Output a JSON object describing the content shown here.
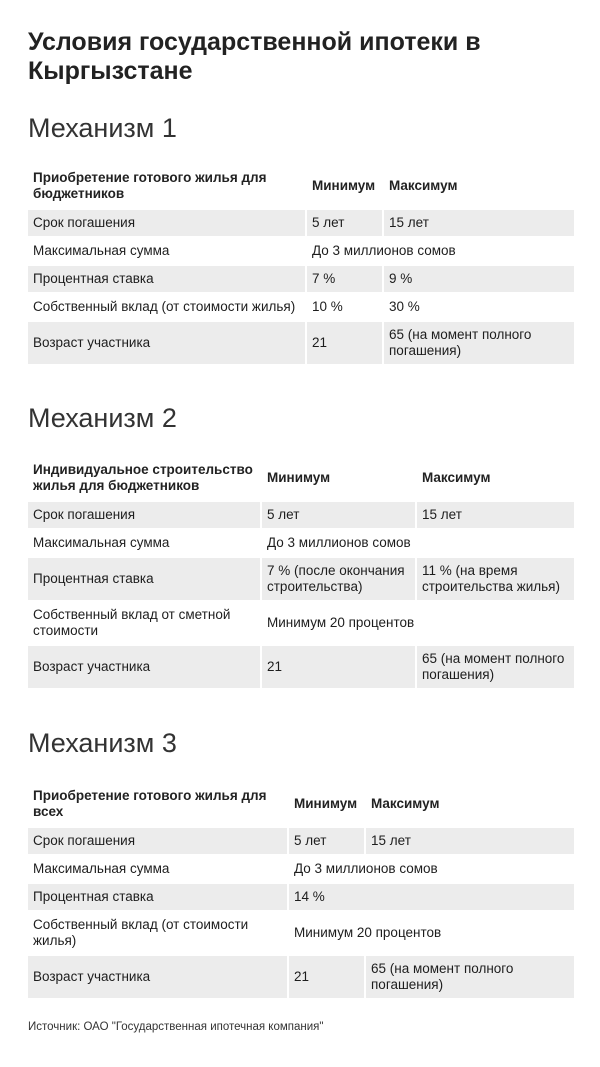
{
  "title": "Условия государственной ипотеки в Кыргызстане",
  "sections": [
    {
      "heading": "Механизм 1",
      "header": [
        "Приобретение готового жилья для бюджетников",
        "Минимум",
        "Максимум"
      ],
      "rows": [
        {
          "label": "Срок погашения",
          "values": [
            "5 лет",
            "15 лет"
          ]
        },
        {
          "label": "Максимальная сумма",
          "values": [
            "До 3 миллионов сомов"
          ]
        },
        {
          "label": "Процентная ставка",
          "values": [
            "7 %",
            "9 %"
          ]
        },
        {
          "label": "Собственный вклад (от стоимости жилья)",
          "values": [
            "10 %",
            "30 %"
          ]
        },
        {
          "label": "Возраст участника",
          "values": [
            "21",
            "65 (на момент полного погашения)"
          ]
        }
      ]
    },
    {
      "heading": "Механизм 2",
      "header": [
        "Индивидуальное строительство жилья для бюджетников",
        "Минимум",
        "Максимум"
      ],
      "rows": [
        {
          "label": "Срок погашения",
          "values": [
            "5 лет",
            "15 лет"
          ]
        },
        {
          "label": "Максимальная сумма",
          "values": [
            "До 3 миллионов сомов"
          ]
        },
        {
          "label": "Процентная ставка",
          "values": [
            "7 % (после окончания строительства)",
            "11 % (на время строительства жилья)"
          ]
        },
        {
          "label": "Собственный вклад от сметной стоимости",
          "values": [
            "Минимум 20 процентов"
          ]
        },
        {
          "label": "Возраст участника",
          "values": [
            "21",
            "65 (на момент полного погашения)"
          ]
        }
      ]
    },
    {
      "heading": "Механизм 3",
      "header": [
        "Приобретение готового жилья для всех",
        "Минимум",
        "Максимум"
      ],
      "rows": [
        {
          "label": "Срок погашения",
          "values": [
            "5 лет",
            "15 лет"
          ]
        },
        {
          "label": "Максимальная сумма",
          "values": [
            "До 3 миллионов сомов"
          ]
        },
        {
          "label": "Процентная ставка",
          "values": [
            "14 %"
          ]
        },
        {
          "label": "Собственный вклад (от стоимости жилья)",
          "values": [
            "Минимум 20 процентов"
          ]
        },
        {
          "label": "Возраст участника",
          "values": [
            "21",
            "65 (на момент полного погашения)"
          ]
        }
      ]
    }
  ],
  "source": "Источник: ОАО \"Государственная ипотечная компания\""
}
